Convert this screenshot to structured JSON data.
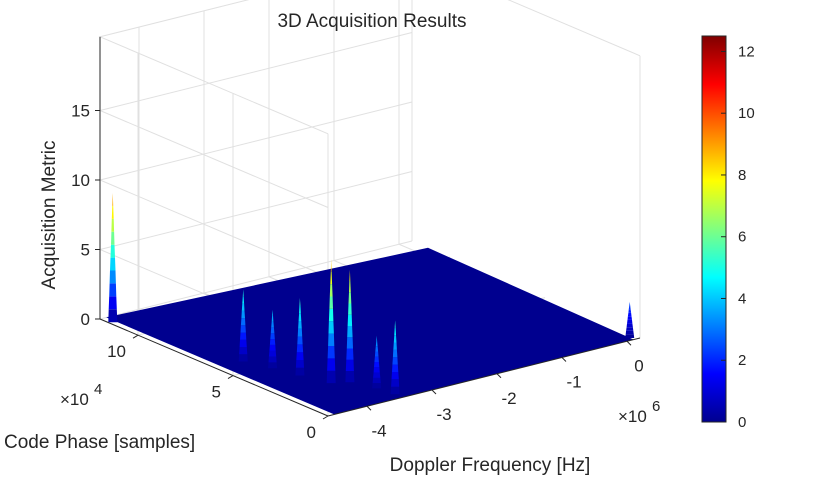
{
  "chart_data": {
    "type": "surface",
    "title": "3D Acquisition Results",
    "xlabel": "Doppler Frequency [Hz]",
    "ylabel": "Code Phase [samples]",
    "zlabel": "Acquisition Metric",
    "x_ticks": [
      "-4",
      "-3",
      "-2",
      "-1",
      "0"
    ],
    "x_exponent": "6",
    "y_ticks": [
      "0",
      "5",
      "10"
    ],
    "y_exponent": "4",
    "z_ticks": [
      "0",
      "5",
      "10",
      "15"
    ],
    "xlim": [
      -4.6,
      0.2
    ],
    "ylim": [
      0,
      12
    ],
    "zlim": [
      0,
      15
    ],
    "grid": true,
    "colormap": "jet",
    "floor_color": "#00008f",
    "colorbar": {
      "ticks": [
        "0",
        "2",
        "4",
        "6",
        "8",
        "10",
        "12"
      ],
      "range": [
        0,
        12.5
      ],
      "colors": [
        "#00008f",
        "#0000ff",
        "#0080ff",
        "#00ffff",
        "#80ff80",
        "#ffff00",
        "#ff8000",
        "#ff0000",
        "#800000"
      ]
    },
    "peaks": [
      {
        "doppler_mhz": -4.18,
        "code_phase_1e4": 5.9,
        "metric": 5.2
      },
      {
        "doppler_mhz": -4.05,
        "code_phase_1e4": 4.8,
        "metric": 4.2
      },
      {
        "doppler_mhz": -3.95,
        "code_phase_1e4": 3.7,
        "metric": 5.6
      },
      {
        "doppler_mhz": -3.82,
        "code_phase_1e4": 2.5,
        "metric": 8.9
      },
      {
        "doppler_mhz": -3.62,
        "code_phase_1e4": 2.2,
        "metric": 8.1
      },
      {
        "doppler_mhz": -3.5,
        "code_phase_1e4": 1.2,
        "metric": 3.8
      },
      {
        "doppler_mhz": -3.45,
        "code_phase_1e4": 0.4,
        "metric": 5.3
      },
      {
        "doppler_mhz": -4.55,
        "code_phase_1e4": 11.5,
        "metric": 9.3
      },
      {
        "doppler_mhz": 0.1,
        "code_phase_1e4": 0.2,
        "metric": 2.6
      }
    ]
  }
}
